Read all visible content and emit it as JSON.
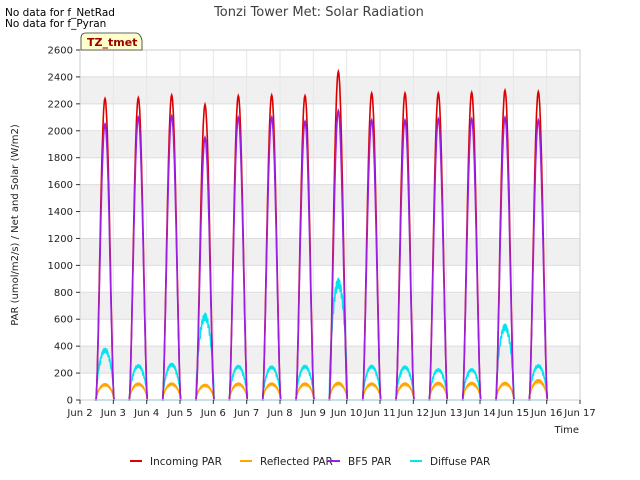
{
  "notes": [
    "No data for f_NetRad",
    "No data for f_Pyran"
  ],
  "badge": "TZ_tmet",
  "chart_data": {
    "type": "line",
    "title": "Tonzi Tower Met: Solar Radiation",
    "xlabel": "Time",
    "ylabel": "PAR (umol/m2/s) / Net and Solar (W/m2)",
    "xlim": [
      2,
      17
    ],
    "ylim": [
      0,
      2600
    ],
    "x_ticks": [
      {
        "value": 2,
        "label": "Jun 2"
      },
      {
        "value": 3,
        "label": "Jun 3"
      },
      {
        "value": 4,
        "label": "Jun 4"
      },
      {
        "value": 5,
        "label": "Jun 5"
      },
      {
        "value": 6,
        "label": "Jun 6"
      },
      {
        "value": 7,
        "label": "Jun 7"
      },
      {
        "value": 8,
        "label": "Jun 8"
      },
      {
        "value": 9,
        "label": "Jun 9"
      },
      {
        "value": 10,
        "label": "Jun 10"
      },
      {
        "value": 11,
        "label": "Jun 11"
      },
      {
        "value": 12,
        "label": "Jun 12"
      },
      {
        "value": 13,
        "label": "Jun 13"
      },
      {
        "value": 14,
        "label": "Jun 14"
      },
      {
        "value": 15,
        "label": "Jun 15"
      },
      {
        "value": 16,
        "label": "Jun 16"
      },
      {
        "value": 17,
        "label": "Jun 17"
      }
    ],
    "y_ticks": [
      0,
      200,
      400,
      600,
      800,
      1000,
      1200,
      1400,
      1600,
      1800,
      2000,
      2200,
      2400,
      2600
    ],
    "grid": true,
    "legend_position": "bottom",
    "series": [
      {
        "name": "Incoming PAR",
        "color": "#dd0000",
        "peaks": [
          {
            "day": 2.75,
            "value": 2240
          },
          {
            "day": 3.75,
            "value": 2245
          },
          {
            "day": 4.75,
            "value": 2265
          },
          {
            "day": 5.75,
            "value": 2195
          },
          {
            "day": 6.75,
            "value": 2260
          },
          {
            "day": 7.75,
            "value": 2265
          },
          {
            "day": 8.75,
            "value": 2260
          },
          {
            "day": 9.75,
            "value": 2440
          },
          {
            "day": 10.75,
            "value": 2280
          },
          {
            "day": 11.75,
            "value": 2280
          },
          {
            "day": 12.75,
            "value": 2280
          },
          {
            "day": 13.75,
            "value": 2285
          },
          {
            "day": 14.75,
            "value": 2300
          },
          {
            "day": 15.75,
            "value": 2290
          }
        ]
      },
      {
        "name": "Reflected PAR",
        "color": "#ffa500",
        "peaks": [
          {
            "day": 2.75,
            "value": 120
          },
          {
            "day": 3.75,
            "value": 125
          },
          {
            "day": 4.75,
            "value": 125
          },
          {
            "day": 5.75,
            "value": 115
          },
          {
            "day": 6.75,
            "value": 125
          },
          {
            "day": 7.75,
            "value": 125
          },
          {
            "day": 8.75,
            "value": 125
          },
          {
            "day": 9.75,
            "value": 130
          },
          {
            "day": 10.75,
            "value": 125
          },
          {
            "day": 11.75,
            "value": 125
          },
          {
            "day": 12.75,
            "value": 130
          },
          {
            "day": 13.75,
            "value": 130
          },
          {
            "day": 14.75,
            "value": 130
          },
          {
            "day": 15.75,
            "value": 150
          }
        ]
      },
      {
        "name": "BF5 PAR",
        "color": "#9a1fe0",
        "peaks": [
          {
            "day": 2.75,
            "value": 2050
          },
          {
            "day": 3.75,
            "value": 2100
          },
          {
            "day": 4.75,
            "value": 2110
          },
          {
            "day": 5.75,
            "value": 1950
          },
          {
            "day": 6.75,
            "value": 2100
          },
          {
            "day": 7.75,
            "value": 2100
          },
          {
            "day": 8.75,
            "value": 2070
          },
          {
            "day": 9.75,
            "value": 2150
          },
          {
            "day": 10.75,
            "value": 2080
          },
          {
            "day": 11.75,
            "value": 2080
          },
          {
            "day": 12.75,
            "value": 2090
          },
          {
            "day": 13.75,
            "value": 2090
          },
          {
            "day": 14.75,
            "value": 2100
          },
          {
            "day": 15.75,
            "value": 2080
          }
        ]
      },
      {
        "name": "Diffuse PAR",
        "color": "#00e5ee",
        "peaks": [
          {
            "day": 2.75,
            "value": 380
          },
          {
            "day": 3.75,
            "value": 260
          },
          {
            "day": 4.75,
            "value": 270
          },
          {
            "day": 5.75,
            "value": 640
          },
          {
            "day": 6.75,
            "value": 255
          },
          {
            "day": 7.75,
            "value": 250
          },
          {
            "day": 8.75,
            "value": 255
          },
          {
            "day": 9.75,
            "value": 900
          },
          {
            "day": 10.75,
            "value": 255
          },
          {
            "day": 11.75,
            "value": 250
          },
          {
            "day": 12.75,
            "value": 230
          },
          {
            "day": 13.75,
            "value": 230
          },
          {
            "day": 14.75,
            "value": 560
          },
          {
            "day": 15.75,
            "value": 260
          }
        ]
      }
    ]
  }
}
